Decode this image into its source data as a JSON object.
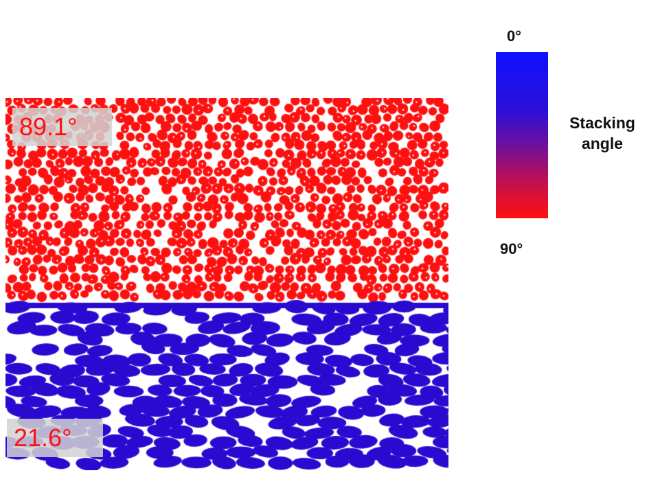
{
  "image": {
    "top_region": {
      "angle_label": "89.1°",
      "particle_color": "#ff1010",
      "description_hint": "dense round red particles"
    },
    "bottom_region": {
      "angle_label": "21.6°",
      "particle_color": "#2a0ad0",
      "description_hint": "elongated blue ellipses"
    },
    "label_bg_color": "#d2d2d2",
    "label_text_color": "#ff1010"
  },
  "colorbar": {
    "top_tick": "0°",
    "bottom_tick": "90°",
    "title_line1": "Stacking",
    "title_line2": "angle",
    "top_color": "#1010ff",
    "bottom_color": "#ff1010"
  }
}
